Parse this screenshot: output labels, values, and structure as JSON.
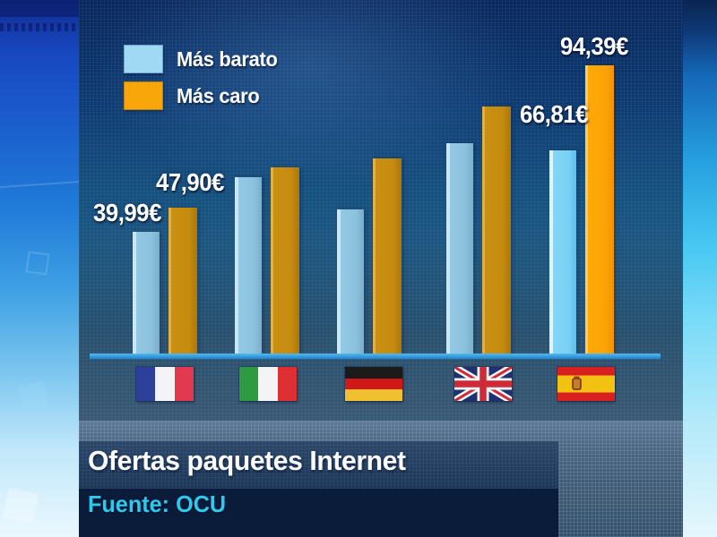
{
  "chart_data": {
    "type": "bar",
    "title": "Ofertas paquetes Internet",
    "source": "Fuente: OCU",
    "currency": "EUR",
    "categories": [
      "Francia",
      "Italia",
      "Alemania",
      "Reino Unido",
      "España"
    ],
    "category_flags": [
      "flag-france",
      "flag-italy",
      "flag-germany",
      "flag-uk",
      "flag-spain"
    ],
    "series": [
      {
        "name": "Más barato",
        "values": [
          39.99,
          58,
          47.5,
          69,
          66.81
        ],
        "value_labels": [
          "39,99€",
          "",
          "",
          "",
          "66,81€"
        ],
        "bar_color": "#8FC7E2",
        "bar_color_highlight": "#7ED5F8",
        "legend_color": "#9EDAF4"
      },
      {
        "name": "Más caro",
        "values": [
          47.9,
          61,
          64,
          81,
          94.39
        ],
        "value_labels": [
          "47,90€",
          "",
          "",
          "",
          "94,39€"
        ],
        "bar_color": "#C88F12",
        "bar_color_highlight": "#FFA608",
        "legend_color": "#F9A60A"
      }
    ],
    "highlighted_category": "España",
    "legend_position": "top-left",
    "gridlines": false,
    "baseline_color": "#2E9EE2"
  }
}
